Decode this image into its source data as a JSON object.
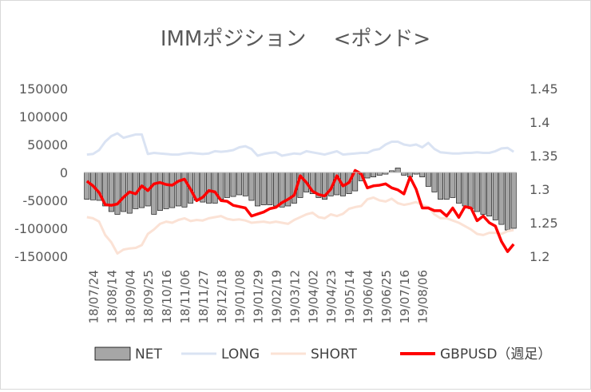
{
  "chart_data": {
    "type": "bar+line",
    "title": "IMMポジション　 <ポンド>",
    "left_axis": {
      "min": -150000,
      "max": 150000,
      "ticks": [
        "150000",
        "100000",
        "50000",
        "0",
        "-50000",
        "-100000",
        "-150000"
      ],
      "tick_values": [
        150000,
        100000,
        50000,
        0,
        -50000,
        -100000,
        -150000
      ]
    },
    "right_axis": {
      "min": 1.2,
      "max": 1.45,
      "ticks": [
        "1.45",
        "1.4",
        "1.35",
        "1.3",
        "1.25",
        "1.2"
      ],
      "tick_values": [
        1.45,
        1.4,
        1.35,
        1.3,
        1.25,
        1.2
      ]
    },
    "x_tick_labels": [
      "18/07/24",
      "18/08/14",
      "18/09/04",
      "18/09/25",
      "18/10/16",
      "18/11/06",
      "18/11/27",
      "18/12/18",
      "19/01/08",
      "19/01/29",
      "19/02/19",
      "19/03/12",
      "19/04/02",
      "19/04/23",
      "19/05/14",
      "19/06/04",
      "19/06/25",
      "19/07/16",
      "19/08/06"
    ],
    "legend": [
      {
        "key": "net",
        "label": "NET"
      },
      {
        "key": "long",
        "label": "LONG"
      },
      {
        "key": "short",
        "label": "SHORT"
      },
      {
        "key": "gbpusd",
        "label": "GBPUSD（週足）"
      }
    ],
    "colors": {
      "net_fill": "#a6a6a6",
      "net_stroke": "#000000",
      "long": "#dae3f3",
      "short": "#fbe2d5",
      "gbpusd": "#ff0000",
      "axis_text": "#595959",
      "title": "#595959"
    },
    "series": {
      "net": [
        -48000,
        -49000,
        -50000,
        -60000,
        -70000,
        -75000,
        -70000,
        -73000,
        -65000,
        -63000,
        -60000,
        -75000,
        -68000,
        -65000,
        -63000,
        -60000,
        -62000,
        -55000,
        -50000,
        -53000,
        -55000,
        -55000,
        -48000,
        -45000,
        -43000,
        -40000,
        -42000,
        -50000,
        -60000,
        -58000,
        -58000,
        -60000,
        -62000,
        -60000,
        -55000,
        -45000,
        -35000,
        -38000,
        -45000,
        -48000,
        -42000,
        -40000,
        -42000,
        -38000,
        -33000,
        -15000,
        -10000,
        -8000,
        -5000,
        -3000,
        3000,
        8000,
        -5000,
        -8000,
        -3000,
        -8000,
        -25000,
        -35000,
        -48000,
        -48000,
        -45000,
        -55000,
        -60000,
        -65000,
        -70000,
        -75000,
        -78000,
        -85000,
        -93000,
        -103000,
        -100000
      ],
      "long": [
        32000,
        33000,
        40000,
        55000,
        65000,
        70000,
        62000,
        65000,
        68000,
        68000,
        33000,
        35000,
        34000,
        33000,
        32000,
        32000,
        34000,
        35000,
        34000,
        33000,
        34000,
        38000,
        37000,
        38000,
        40000,
        45000,
        47000,
        42000,
        30000,
        33000,
        35000,
        36000,
        30000,
        32000,
        34000,
        33000,
        38000,
        36000,
        34000,
        32000,
        35000,
        38000,
        32000,
        33000,
        34000,
        35000,
        35000,
        40000,
        42000,
        50000,
        55000,
        55000,
        50000,
        48000,
        50000,
        45000,
        53000,
        42000,
        36000,
        35000,
        34000,
        34000,
        35000,
        35000,
        36000,
        35000,
        35000,
        38000,
        43000,
        44000,
        37000
      ],
      "short": [
        -80000,
        -82000,
        -88000,
        -112000,
        -125000,
        -145000,
        -138000,
        -136000,
        -135000,
        -130000,
        -110000,
        -102000,
        -92000,
        -88000,
        -90000,
        -85000,
        -82000,
        -87000,
        -85000,
        -86000,
        -82000,
        -80000,
        -78000,
        -83000,
        -85000,
        -84000,
        -86000,
        -90000,
        -89000,
        -88000,
        -90000,
        -88000,
        -90000,
        -92000,
        -85000,
        -80000,
        -75000,
        -72000,
        -80000,
        -82000,
        -75000,
        -78000,
        -74000,
        -65000,
        -62000,
        -60000,
        -48000,
        -45000,
        -50000,
        -52000,
        -47000,
        -55000,
        -58000,
        -56000,
        -53000,
        -58000,
        -62000,
        -75000,
        -82000,
        -82000,
        -86000,
        -90000,
        -96000,
        -102000,
        -110000,
        -112000,
        -108000,
        -108000,
        -110000,
        -105000,
        -103000
      ],
      "gbpusd": [
        1.312,
        1.305,
        1.295,
        1.277,
        1.276,
        1.278,
        1.288,
        1.296,
        1.293,
        1.305,
        1.298,
        1.308,
        1.31,
        1.307,
        1.306,
        1.312,
        1.315,
        1.3,
        1.283,
        1.288,
        1.298,
        1.296,
        1.283,
        1.282,
        1.276,
        1.274,
        1.272,
        1.26,
        1.263,
        1.266,
        1.271,
        1.273,
        1.28,
        1.285,
        1.291,
        1.32,
        1.31,
        1.297,
        1.292,
        1.29,
        1.3,
        1.32,
        1.305,
        1.31,
        1.328,
        1.323,
        1.302,
        1.305,
        1.306,
        1.308,
        1.302,
        1.299,
        1.293,
        1.318,
        1.3,
        1.272,
        1.272,
        1.268,
        1.268,
        1.26,
        1.272,
        1.258,
        1.274,
        1.272,
        1.253,
        1.26,
        1.25,
        1.245,
        1.222,
        1.207,
        1.218
      ]
    }
  }
}
